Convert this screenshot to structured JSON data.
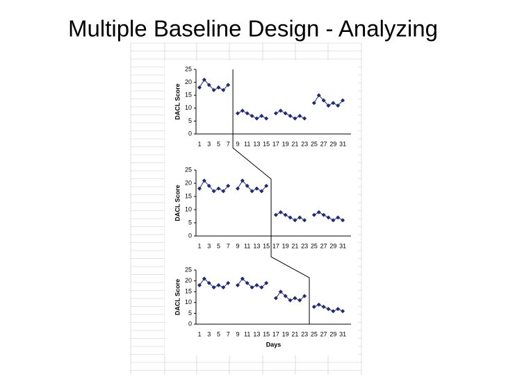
{
  "slide_title": "Multiple Baseline Design - Analyzing",
  "chart_data": [
    {
      "type": "line",
      "ylabel": "DACL Score",
      "categories": [
        1,
        null,
        3,
        null,
        5,
        null,
        7,
        null,
        9,
        null,
        11,
        null,
        13,
        null,
        15,
        null,
        17,
        null,
        19,
        null,
        21,
        null,
        23,
        null,
        25,
        null,
        27,
        null,
        29,
        null,
        31
      ],
      "series": [
        {
          "color": "#1f2a7a",
          "values": [
            18,
            21,
            19,
            17,
            18,
            17,
            19,
            null,
            8,
            9,
            8,
            7,
            6,
            7,
            6,
            null,
            8,
            9,
            8,
            7,
            6,
            7,
            6,
            null,
            12,
            15,
            13,
            11,
            12,
            11,
            13
          ]
        }
      ],
      "ylim": [
        0,
        25
      ],
      "yticks": [
        0,
        5,
        10,
        15,
        20,
        25
      ]
    },
    {
      "type": "line",
      "ylabel": "DACL Score",
      "categories": [
        1,
        null,
        3,
        null,
        5,
        null,
        7,
        null,
        9,
        null,
        11,
        null,
        13,
        null,
        15,
        null,
        17,
        null,
        19,
        null,
        21,
        null,
        23,
        null,
        25,
        null,
        27,
        null,
        29,
        null,
        31
      ],
      "series": [
        {
          "color": "#1f2a7a",
          "values": [
            18,
            21,
            19,
            17,
            18,
            17,
            19,
            null,
            18,
            21,
            19,
            17,
            18,
            17,
            19,
            null,
            8,
            9,
            8,
            7,
            6,
            7,
            6,
            null,
            8,
            9,
            8,
            7,
            6,
            7,
            6
          ]
        }
      ],
      "ylim": [
        0,
        25
      ],
      "yticks": [
        0,
        5,
        10,
        15,
        20,
        25
      ]
    },
    {
      "type": "line",
      "ylabel": "DACL Score",
      "xlabel": "Days",
      "categories": [
        1,
        null,
        3,
        null,
        5,
        null,
        7,
        null,
        9,
        null,
        11,
        null,
        13,
        null,
        15,
        null,
        17,
        null,
        19,
        null,
        21,
        null,
        23,
        null,
        25,
        null,
        27,
        null,
        29,
        null,
        31
      ],
      "series": [
        {
          "color": "#1f2a7a",
          "values": [
            18,
            21,
            19,
            17,
            18,
            17,
            19,
            null,
            18,
            21,
            19,
            17,
            18,
            17,
            19,
            null,
            12,
            15,
            13,
            11,
            12,
            11,
            13,
            null,
            8,
            9,
            8,
            7,
            6,
            7,
            6
          ]
        }
      ],
      "ylim": [
        0,
        25
      ],
      "yticks": [
        0,
        5,
        10,
        15,
        20,
        25
      ]
    }
  ]
}
